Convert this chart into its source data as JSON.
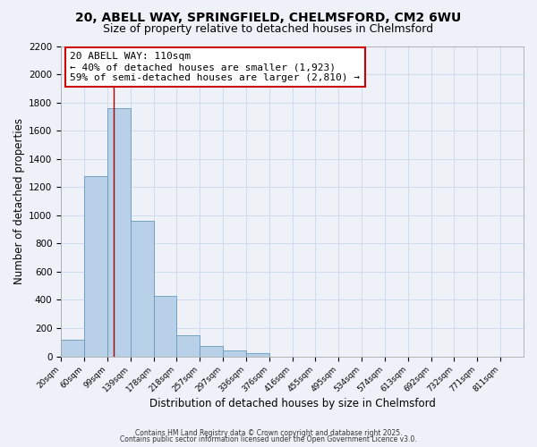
{
  "title": "20, ABELL WAY, SPRINGFIELD, CHELMSFORD, CM2 6WU",
  "subtitle": "Size of property relative to detached houses in Chelmsford",
  "xlabel": "Distribution of detached houses by size in Chelmsford",
  "ylabel": "Number of detached properties",
  "bin_labels": [
    "20sqm",
    "60sqm",
    "99sqm",
    "139sqm",
    "178sqm",
    "218sqm",
    "257sqm",
    "297sqm",
    "336sqm",
    "376sqm",
    "416sqm",
    "455sqm",
    "495sqm",
    "534sqm",
    "574sqm",
    "613sqm",
    "692sqm",
    "732sqm",
    "771sqm",
    "811sqm"
  ],
  "n_bins": 20,
  "bar_heights": [
    115,
    1280,
    1760,
    960,
    430,
    150,
    75,
    40,
    25,
    0,
    0,
    0,
    0,
    0,
    0,
    0,
    0,
    0,
    0,
    0
  ],
  "bar_color": "#b8d0e8",
  "bar_edge_color": "#6699bb",
  "grid_color": "#c8d8ec",
  "background_color": "#eef2f8",
  "vline_x": 2,
  "vline_color": "#aa0000",
  "annotation_text": "20 ABELL WAY: 110sqm\n← 40% of detached houses are smaller (1,923)\n59% of semi-detached houses are larger (2,810) →",
  "annotation_box_color": "#ffffff",
  "annotation_border_color": "#cc0000",
  "ylim": [
    0,
    2200
  ],
  "yticks": [
    0,
    200,
    400,
    600,
    800,
    1000,
    1200,
    1400,
    1600,
    1800,
    2000,
    2200
  ],
  "footer1": "Contains HM Land Registry data © Crown copyright and database right 2025.",
  "footer2": "Contains public sector information licensed under the Open Government Licence v3.0.",
  "title_fontsize": 10,
  "subtitle_fontsize": 9,
  "xlabel_fontsize": 8.5,
  "ylabel_fontsize": 8.5,
  "annot_fontsize": 8
}
